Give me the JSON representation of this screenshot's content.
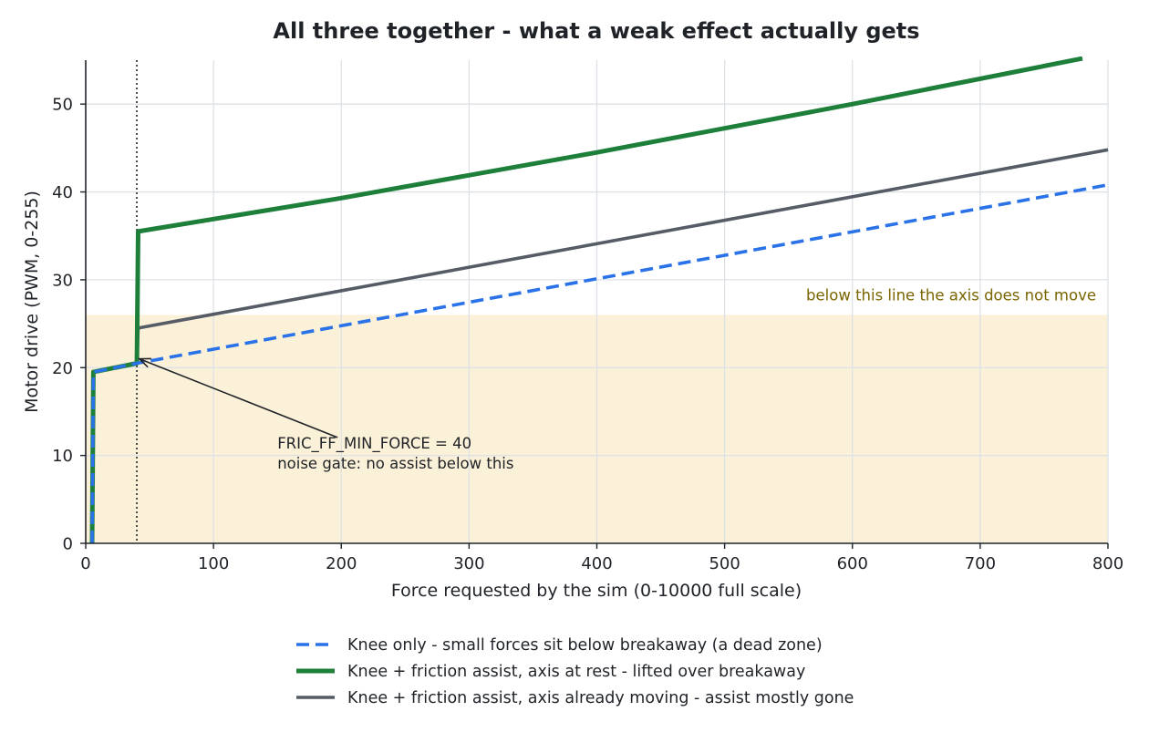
{
  "chart_data": {
    "type": "line",
    "title": "All three together - what a weak effect actually gets",
    "xlabel": "Force requested by the sim  (0-10000 full scale)",
    "ylabel": "Motor drive  (PWM, 0-255)",
    "xlim": [
      0,
      800
    ],
    "ylim": [
      0,
      55
    ],
    "xticks": [
      0,
      100,
      200,
      300,
      400,
      500,
      600,
      700,
      800
    ],
    "yticks": [
      0,
      10,
      20,
      30,
      40,
      50
    ],
    "grid": true,
    "legend_position": "bottom-center",
    "series": [
      {
        "name": "Knee only - small forces sit below breakaway (a dead zone)",
        "color": "#2a72e8",
        "style": "dashed",
        "x": [
          5,
          6,
          40,
          800
        ],
        "y": [
          0,
          19.5,
          20.5,
          40.8
        ]
      },
      {
        "name": "Knee + friction assist, axis at rest - lifted over breakaway",
        "color": "#1e7f3a",
        "style": "solid-thick",
        "x": [
          5,
          6,
          40,
          41,
          200,
          400,
          600,
          780
        ],
        "y": [
          0,
          19.5,
          20.5,
          35.5,
          39.3,
          44.5,
          50.0,
          55.2
        ]
      },
      {
        "name": "Knee + friction assist, axis already moving - assist mostly gone",
        "color": "#555c66",
        "style": "solid",
        "x": [
          5,
          6,
          40,
          41,
          800
        ],
        "y": [
          0,
          19.5,
          20.5,
          24.5,
          44.8
        ]
      }
    ],
    "shaded_band": {
      "y_from": 0,
      "y_to": 26,
      "color": "#fbf1d8",
      "label": "below this line the axis does not move",
      "label_color": "#7a6500"
    },
    "vline": {
      "x": 40,
      "style": "dotted",
      "color": "#1f2328"
    },
    "annotation": {
      "lines": [
        "FRIC_FF_MIN_FORCE = 40",
        "noise gate: no assist below this"
      ],
      "point": {
        "x": 42,
        "y": 21.0
      },
      "text_anchor": {
        "x": 150,
        "y": 10.8
      }
    }
  }
}
